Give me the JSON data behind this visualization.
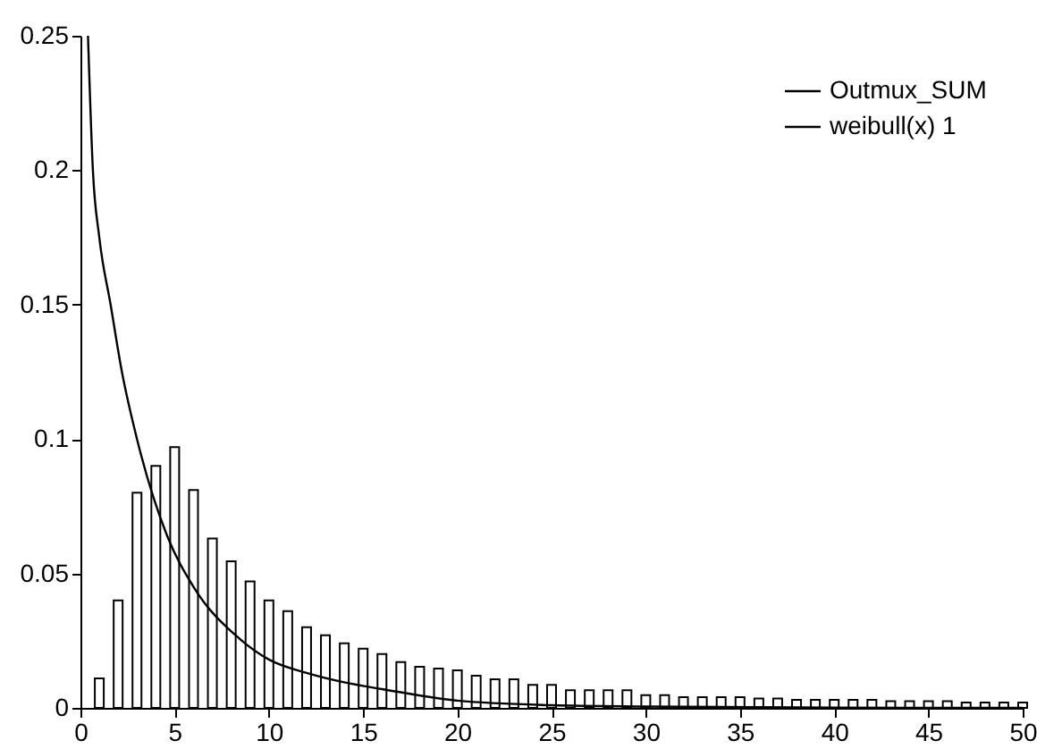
{
  "chart_data": {
    "type": "bar",
    "xlim": [
      0,
      50
    ],
    "xticks": [
      0,
      5,
      10,
      15,
      20,
      25,
      30,
      35,
      40,
      45,
      50
    ],
    "ylim": [
      0,
      0.25
    ],
    "yticks": [
      0,
      0.05,
      0.1,
      0.15,
      0.2,
      0.25
    ],
    "grid": false,
    "legend": "top right",
    "series": [
      {
        "name": "Outmux_SUM",
        "color": "#000000",
        "x": [
          1,
          2,
          3,
          4,
          5,
          6,
          7,
          8,
          9,
          10,
          11,
          12,
          13,
          14,
          15,
          16,
          17,
          18,
          19,
          20,
          21,
          22,
          23,
          24,
          25,
          26,
          27,
          28,
          29,
          30,
          31,
          32,
          33,
          34,
          35,
          36,
          37,
          38,
          39,
          40,
          41,
          42,
          43,
          44,
          45,
          46,
          47,
          48,
          49,
          50
        ],
        "values": [
          0.011,
          0.04,
          0.08,
          0.09,
          0.097,
          0.081,
          0.063,
          0.0545,
          0.047,
          0.04,
          0.036,
          0.03,
          0.027,
          0.024,
          0.022,
          0.02,
          0.017,
          0.0153,
          0.0146,
          0.014,
          0.012,
          0.0106,
          0.0106,
          0.0086,
          0.0086,
          0.0066,
          0.0066,
          0.0066,
          0.0066,
          0.0047,
          0.0047,
          0.004,
          0.004,
          0.004,
          0.004,
          0.0035,
          0.0035,
          0.003,
          0.003,
          0.003,
          0.003,
          0.003,
          0.0025,
          0.0025,
          0.0025,
          0.0025,
          0.002,
          0.002,
          0.002,
          0.002
        ]
      },
      {
        "name": "weibull(x) 1",
        "type": "line",
        "color": "#000000",
        "x": [
          0.4,
          0.66,
          1.0,
          1.6,
          2.2,
          3.0,
          4.6,
          6,
          8.4,
          10,
          12,
          14,
          16,
          20,
          25,
          30,
          40,
          50
        ],
        "values": [
          0.25,
          0.2,
          0.175,
          0.15,
          0.125,
          0.1,
          0.064,
          0.045,
          0.026,
          0.018,
          0.013,
          0.0095,
          0.007,
          0.0027,
          0.001,
          0.0005,
          0.0001,
          0
        ]
      }
    ]
  }
}
